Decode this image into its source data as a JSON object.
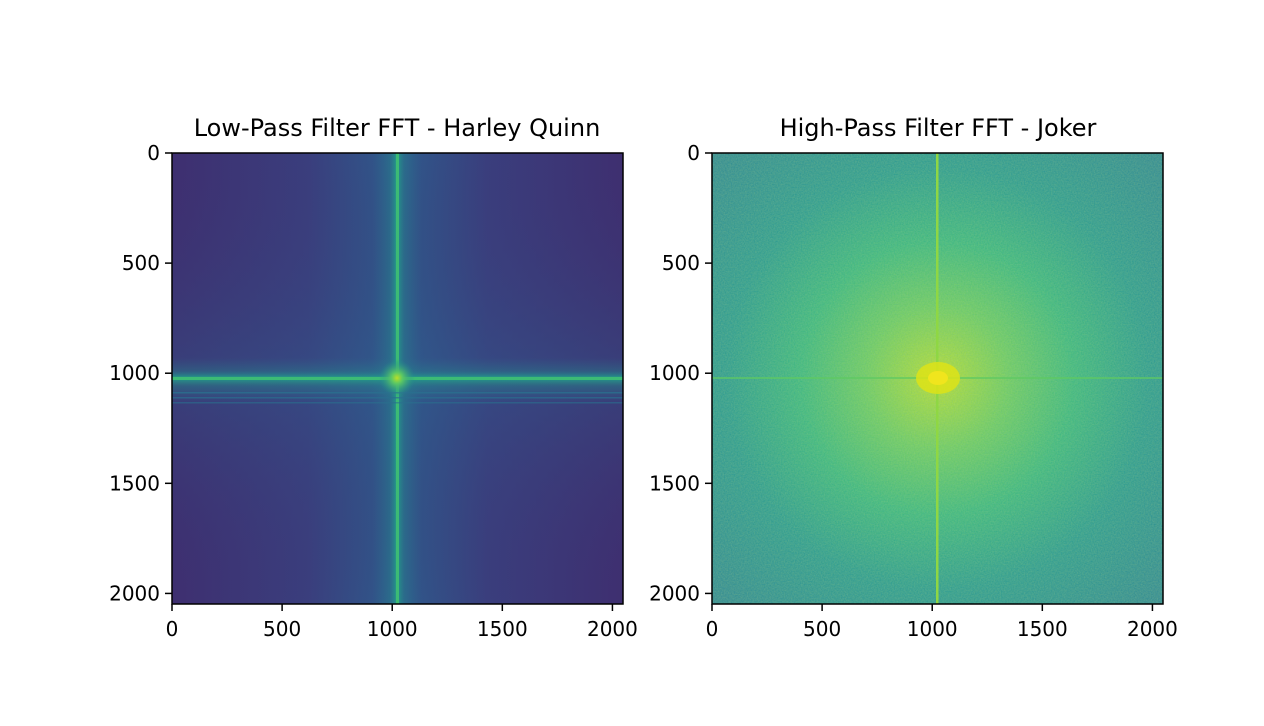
{
  "chart_data": [
    {
      "type": "heatmap",
      "title": "Low-Pass Filter FFT - Harley Quinn",
      "xlabel": "",
      "ylabel": "",
      "xlim": [
        0,
        2048
      ],
      "ylim": [
        2048,
        0
      ],
      "x_ticks": [
        0,
        500,
        1000,
        1500,
        2000
      ],
      "y_ticks": [
        0,
        500,
        1000,
        1500,
        2000
      ],
      "x_tick_labels": [
        "0",
        "500",
        "1000",
        "1500",
        "2000"
      ],
      "y_tick_labels": [
        "0",
        "500",
        "1000",
        "1500",
        "2000"
      ],
      "colormap": "viridis",
      "center": [
        1024,
        1024
      ],
      "grid": false
    },
    {
      "type": "heatmap",
      "title": "High-Pass Filter FFT - Joker",
      "xlabel": "",
      "ylabel": "",
      "xlim": [
        0,
        2048
      ],
      "ylim": [
        2048,
        0
      ],
      "x_ticks": [
        0,
        500,
        1000,
        1500,
        2000
      ],
      "y_ticks": [
        0,
        500,
        1000,
        1500,
        2000
      ],
      "x_tick_labels": [
        "0",
        "500",
        "1000",
        "1500",
        "2000"
      ],
      "y_tick_labels": [
        "0",
        "500",
        "1000",
        "1500",
        "2000"
      ],
      "colormap": "viridis",
      "center": [
        1024,
        1024
      ],
      "grid": false
    }
  ],
  "colors": {
    "low_background": "#3b2f70",
    "low_axis_line": "#1f9e89",
    "high_background": "#26808e",
    "high_center": "#d8e219"
  }
}
